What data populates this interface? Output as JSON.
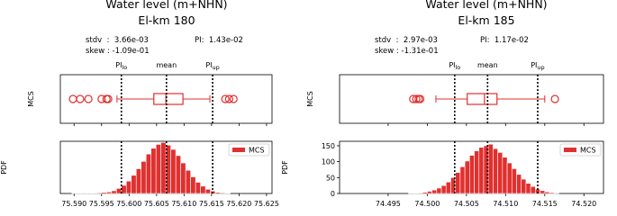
{
  "chart_data": [
    {
      "type": "histogram",
      "title": "Water level (m+NHN)",
      "subtitle": "El-km 180",
      "annotations": [
        "stdv  :  3.66e-03",
        "PI:  1.43e-02",
        "skew : -1.09e-01"
      ],
      "boxplot": {
        "ylabel": "MCS",
        "color": "#e0302f",
        "whislo": 75.5978,
        "q1": 75.6045,
        "median": 75.6067,
        "q3": 75.6098,
        "whishi": 75.6147,
        "fliers": [
          75.5898,
          75.5911,
          75.5926,
          75.595,
          75.5959,
          75.5962,
          75.6175,
          75.6182,
          75.619
        ]
      },
      "reference_lines": [
        {
          "label": "PI",
          "subscript": "lo",
          "value": 75.5986
        },
        {
          "label": "mean",
          "value": 75.6068
        },
        {
          "label": "PI",
          "subscript": "up",
          "value": 75.6152
        }
      ],
      "name": "MCS",
      "color": "#e0302f",
      "ylabel": "PDF",
      "legend": "upper right",
      "bins": [
        75.5896,
        75.5905,
        75.5914,
        75.5923,
        75.5932,
        75.5941,
        75.595,
        75.5959,
        75.5968,
        75.5977,
        75.5986,
        75.5995,
        75.6004,
        75.6013,
        75.6022,
        75.6031,
        75.604,
        75.6049,
        75.6058,
        75.6067,
        75.6076,
        75.6085,
        75.6094,
        75.6103,
        75.6112,
        75.6121,
        75.613,
        75.6139,
        75.6148,
        75.6157,
        75.6166,
        75.6175,
        75.6184
      ],
      "values": [
        1,
        1,
        1,
        1,
        1,
        2,
        3,
        4,
        7,
        13,
        21,
        32,
        47,
        64,
        83,
        102,
        117,
        127,
        132,
        125,
        114,
        98,
        79,
        60,
        43,
        29,
        19,
        11,
        6,
        3,
        2,
        1
      ],
      "xlim": [
        75.5875,
        75.626
      ],
      "ylim": [
        0,
        135
      ],
      "xticks": [
        {
          "value": 75.59,
          "label": "75.590"
        },
        {
          "value": 75.595,
          "label": "75.595"
        },
        {
          "value": 75.6,
          "label": "75.600"
        },
        {
          "value": 75.605,
          "label": "75.605"
        },
        {
          "value": 75.61,
          "label": "75.610"
        },
        {
          "value": 75.615,
          "label": "75.615"
        },
        {
          "value": 75.62,
          "label": "75.620"
        },
        {
          "value": 75.625,
          "label": "75.625"
        }
      ]
    },
    {
      "type": "histogram",
      "title": "Water level (m+NHN)",
      "subtitle": "El-km 185",
      "annotations": [
        "stdv  :  2.97e-03",
        "PI:  1.17e-02",
        "skew : -1.31e-01"
      ],
      "boxplot": {
        "ylabel": "MCS",
        "color": "#e0302f",
        "whislo": 74.5011,
        "q1": 74.5051,
        "median": 74.5073,
        "q3": 74.5089,
        "whishi": 74.515,
        "fliers": [
          74.4982,
          74.4986,
          74.4989,
          74.4991,
          74.5163
        ]
      },
      "reference_lines": [
        {
          "label": "PI",
          "subscript": "lo",
          "value": 74.5035
        },
        {
          "label": "mean",
          "value": 74.5077
        },
        {
          "label": "PI",
          "subscript": "up",
          "value": 74.5141
        }
      ],
      "name": "MCS",
      "color": "#e0302f",
      "ylabel": "PDF",
      "legend": "upper right",
      "bins": [
        74.4976,
        74.4982,
        74.4988,
        74.4994,
        74.5,
        74.5006,
        74.5012,
        74.5018,
        74.5024,
        74.503,
        74.5036,
        74.5042,
        74.5048,
        74.5054,
        74.506,
        74.5066,
        74.5072,
        74.5078,
        74.5084,
        74.509,
        74.5096,
        74.5102,
        74.5108,
        74.5114,
        74.512,
        74.5126,
        74.5132,
        74.5138,
        74.5144,
        74.515,
        74.5156,
        74.5162,
        74.5168
      ],
      "values": [
        1,
        1,
        2,
        4,
        7,
        11,
        17,
        25,
        36,
        50,
        66,
        84,
        102,
        120,
        134,
        145,
        150,
        155,
        141,
        129,
        114,
        96,
        78,
        60,
        45,
        32,
        22,
        14,
        9,
        5,
        3,
        2
      ],
      "xlim": [
        74.4888,
        74.5225
      ],
      "ylim": [
        0,
        164
      ],
      "yticks": [
        0,
        50,
        100,
        150
      ],
      "xticks": [
        {
          "value": 74.495,
          "label": "74.495"
        },
        {
          "value": 74.5,
          "label": "74.500"
        },
        {
          "value": 74.505,
          "label": "74.505"
        },
        {
          "value": 74.51,
          "label": "74.510"
        },
        {
          "value": 74.515,
          "label": "74.515"
        },
        {
          "value": 74.52,
          "label": "74.520"
        }
      ]
    }
  ]
}
